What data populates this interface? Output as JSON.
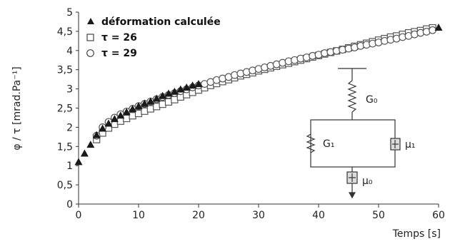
{
  "chart_data": {
    "type": "scatter",
    "title": "",
    "xlabel": "Temps [s]",
    "ylabel": "φ / τ [mrad.Pa⁻¹]",
    "xlim": [
      0,
      60
    ],
    "ylim": [
      0,
      5
    ],
    "x_ticks": [
      "0",
      "10",
      "20",
      "30",
      "40",
      "50",
      "60"
    ],
    "y_ticks": [
      "0",
      "0,5",
      "1",
      "1,5",
      "2",
      "2,5",
      "3",
      "3,5",
      "4",
      "4,5",
      "5"
    ],
    "grid": false,
    "legend_position": "top-left",
    "series": [
      {
        "name": "déformation calculée",
        "marker": "filled-triangle",
        "color": "#1a1a1a",
        "x": [
          0,
          1,
          2,
          3,
          4,
          5,
          6,
          7,
          8,
          9,
          10,
          11,
          12,
          13,
          14,
          15,
          16,
          17,
          18,
          19,
          20,
          60
        ],
        "y": [
          1.1,
          1.32,
          1.55,
          1.8,
          1.97,
          2.1,
          2.22,
          2.31,
          2.4,
          2.48,
          2.55,
          2.62,
          2.68,
          2.75,
          2.82,
          2.88,
          2.93,
          2.99,
          3.04,
          3.09,
          3.13,
          4.6
        ]
      },
      {
        "name": "τ = 26",
        "marker": "open-square",
        "color": "#555555",
        "x": [
          3,
          4,
          5,
          6,
          7,
          8,
          9,
          10,
          11,
          12,
          13,
          14,
          15,
          16,
          17,
          18,
          19,
          20,
          21,
          22,
          23,
          24,
          25,
          26,
          27,
          28,
          29,
          30,
          31,
          32,
          33,
          34,
          35,
          36,
          37,
          38,
          39,
          40,
          41,
          42,
          43,
          44,
          45,
          46,
          47,
          48,
          49,
          50,
          51,
          52,
          53,
          54,
          55,
          56,
          57,
          58,
          59
        ],
        "y": [
          1.68,
          1.85,
          1.98,
          2.08,
          2.16,
          2.23,
          2.3,
          2.36,
          2.42,
          2.48,
          2.54,
          2.6,
          2.66,
          2.72,
          2.79,
          2.85,
          2.91,
          2.97,
          3.03,
          3.09,
          3.14,
          3.19,
          3.24,
          3.29,
          3.34,
          3.38,
          3.42,
          3.47,
          3.51,
          3.55,
          3.59,
          3.63,
          3.67,
          3.71,
          3.75,
          3.79,
          3.83,
          3.87,
          3.91,
          3.95,
          3.99,
          4.03,
          4.07,
          4.11,
          4.15,
          4.19,
          4.23,
          4.27,
          4.31,
          4.35,
          4.38,
          4.42,
          4.46,
          4.49,
          4.52,
          4.56,
          4.59
        ]
      },
      {
        "name": "τ = 29",
        "marker": "open-circle",
        "color": "#555555",
        "x": [
          3,
          4,
          5,
          6,
          7,
          8,
          9,
          10,
          11,
          12,
          13,
          14,
          15,
          16,
          17,
          18,
          19,
          20,
          21,
          22,
          23,
          24,
          25,
          26,
          27,
          28,
          29,
          30,
          31,
          32,
          33,
          34,
          35,
          36,
          37,
          38,
          39,
          40,
          41,
          42,
          43,
          44,
          45,
          46,
          47,
          48,
          49,
          50,
          51,
          52,
          53,
          54,
          55,
          56,
          57,
          58,
          59
        ],
        "y": [
          1.78,
          2.0,
          2.14,
          2.25,
          2.34,
          2.41,
          2.48,
          2.55,
          2.61,
          2.67,
          2.73,
          2.79,
          2.84,
          2.89,
          2.94,
          2.99,
          3.04,
          3.09,
          3.13,
          3.18,
          3.23,
          3.27,
          3.31,
          3.36,
          3.4,
          3.44,
          3.48,
          3.52,
          3.56,
          3.6,
          3.64,
          3.68,
          3.72,
          3.75,
          3.79,
          3.82,
          3.86,
          3.89,
          3.93,
          3.96,
          3.99,
          4.02,
          4.05,
          4.08,
          4.12,
          4.15,
          4.18,
          4.21,
          4.25,
          4.28,
          4.31,
          4.35,
          4.38,
          4.42,
          4.46,
          4.49,
          4.53
        ]
      }
    ]
  },
  "model": {
    "labels": {
      "g0": "G₀",
      "g1": "G₁",
      "mu1": "μ₁",
      "mu0": "μ₀"
    }
  }
}
